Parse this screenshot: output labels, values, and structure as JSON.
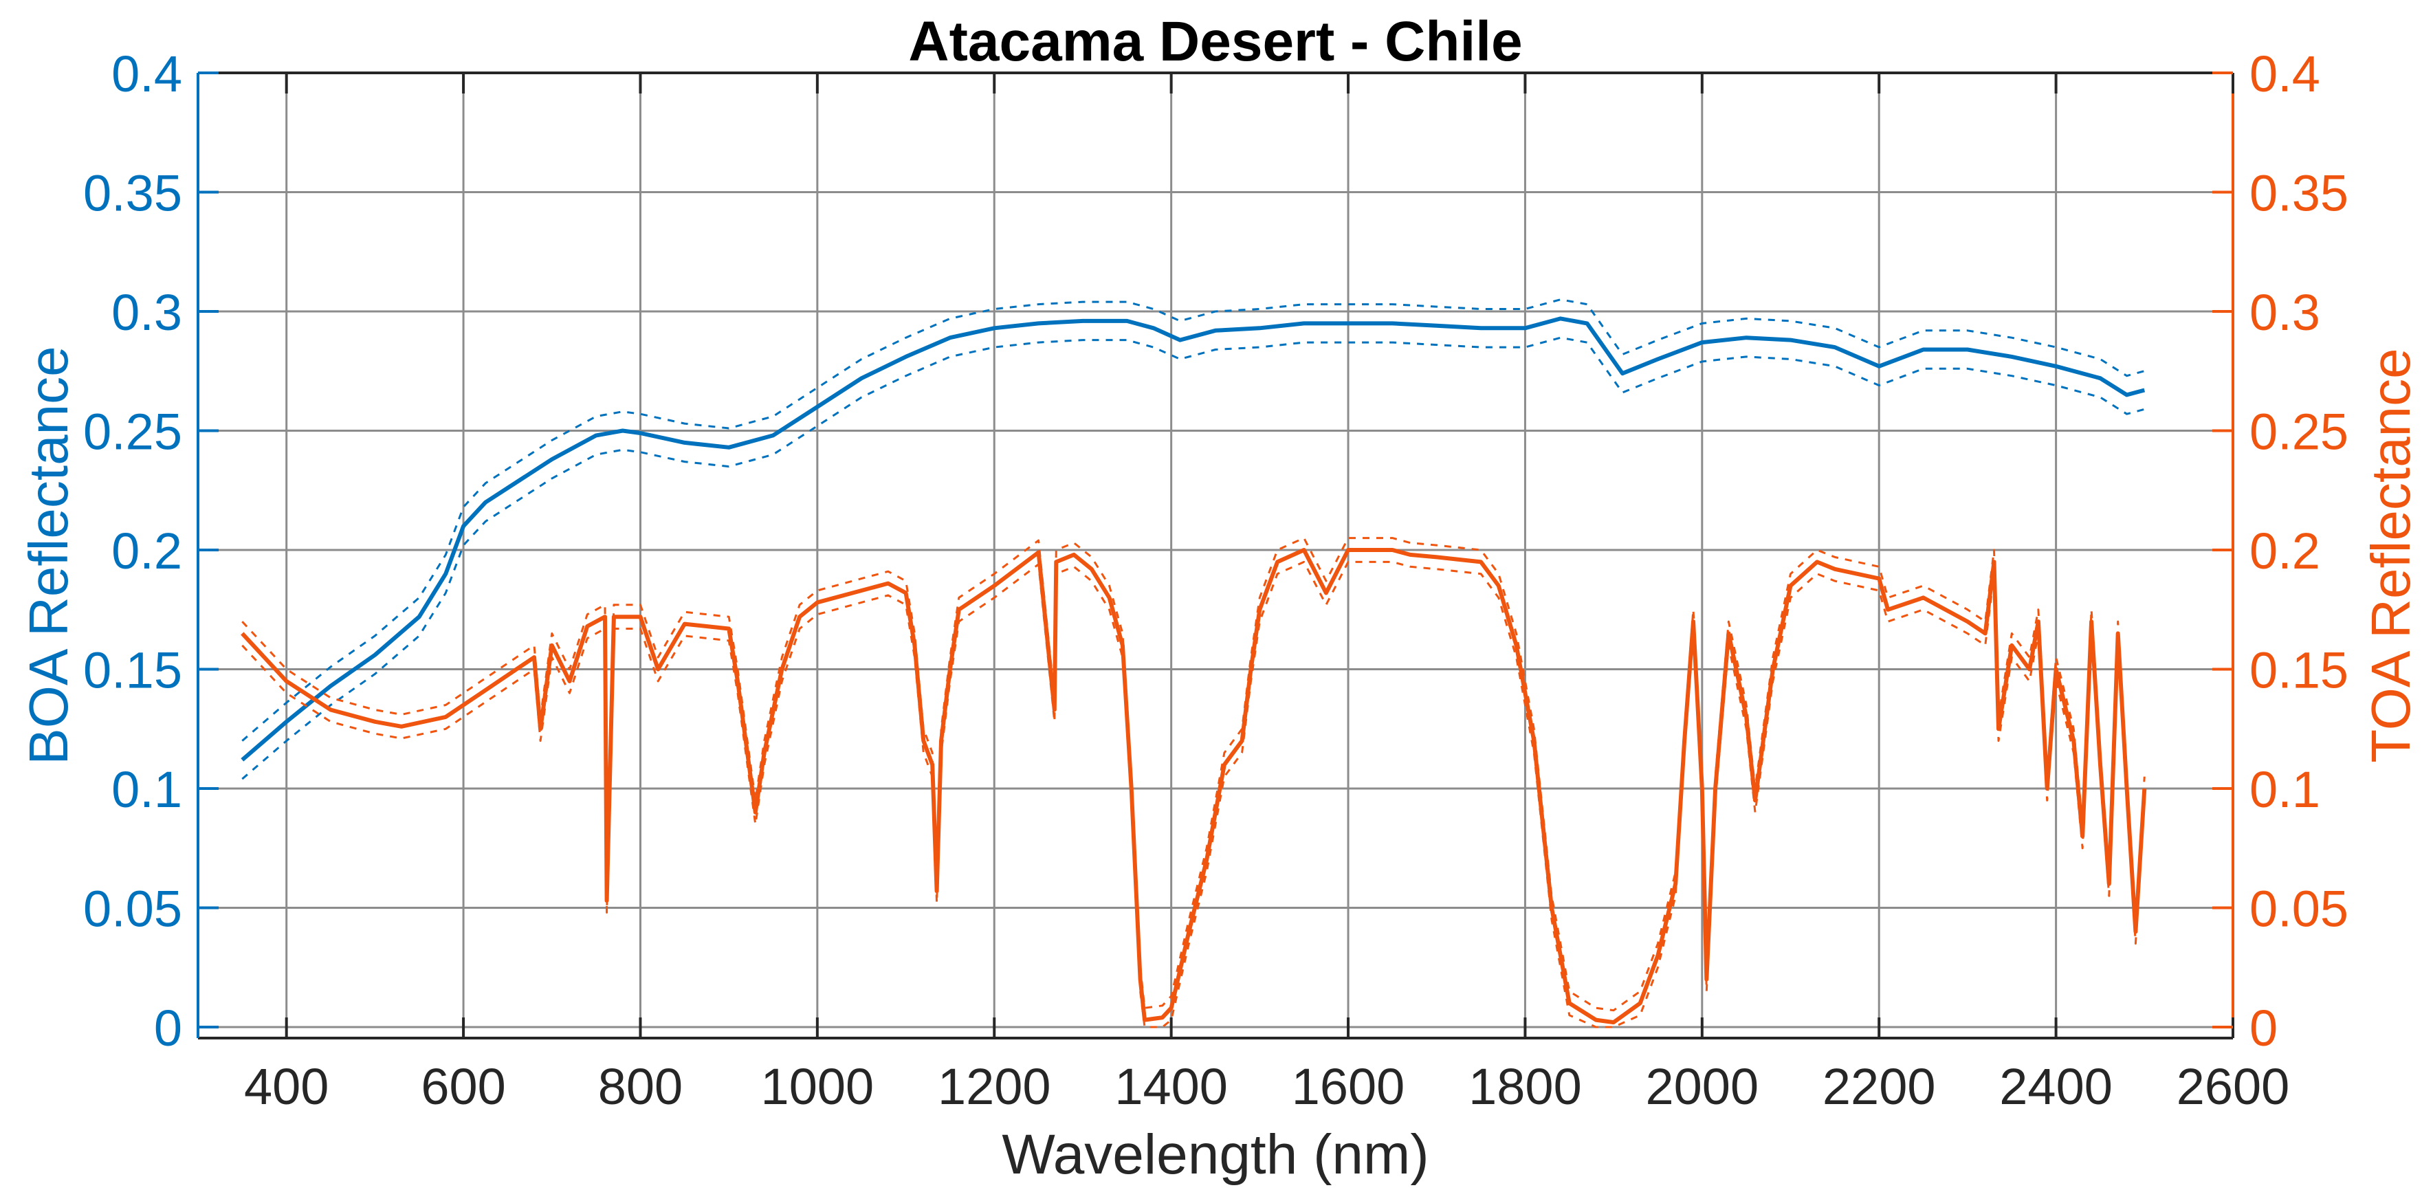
{
  "colors": {
    "boa": "#0072BD",
    "toa": "#F0550F",
    "grid": "#8c8c8c",
    "axis": "#262626"
  },
  "chart_data": {
    "type": "line",
    "title": "Atacama Desert  - Chile",
    "xlabel": "Wavelength (nm)",
    "ylabel_left": "BOA Reflectance",
    "ylabel_right": "TOA Reflectance",
    "xlim": [
      300,
      2600
    ],
    "ylim_left": [
      -0.005,
      0.4
    ],
    "ylim_right": [
      -0.005,
      0.4
    ],
    "grid": true,
    "legend": null,
    "x_ticks": [
      400,
      600,
      800,
      1000,
      1200,
      1400,
      1600,
      1800,
      2000,
      2200,
      2400,
      2600
    ],
    "x_tick_labels": [
      "400",
      "600",
      "800",
      "1000",
      "1200",
      "1400",
      "1600",
      "1800",
      "2000",
      "2200",
      "2400",
      "2600"
    ],
    "y_ticks": [
      0,
      0.05,
      0.1,
      0.15,
      0.2,
      0.25,
      0.3,
      0.35,
      0.4
    ],
    "y_tick_labels": [
      "0",
      "0.05",
      "0.1",
      "0.15",
      "0.2",
      "0.25",
      "0.3",
      "0.35",
      "0.4"
    ],
    "series": [
      {
        "name": "BOA Reflectance (mean)",
        "axis": "left",
        "color": "#0072BD",
        "style": "solid",
        "x": [
          350,
          400,
          450,
          500,
          550,
          580,
          600,
          625,
          650,
          700,
          750,
          780,
          800,
          850,
          900,
          950,
          1000,
          1050,
          1100,
          1150,
          1200,
          1250,
          1300,
          1350,
          1380,
          1410,
          1450,
          1500,
          1550,
          1600,
          1650,
          1700,
          1750,
          1800,
          1840,
          1870,
          1910,
          1950,
          2000,
          2050,
          2100,
          2150,
          2200,
          2250,
          2300,
          2350,
          2400,
          2450,
          2480,
          2500
        ],
        "values": [
          0.112,
          0.128,
          0.143,
          0.156,
          0.172,
          0.19,
          0.21,
          0.22,
          0.226,
          0.238,
          0.248,
          0.25,
          0.249,
          0.245,
          0.243,
          0.248,
          0.26,
          0.272,
          0.281,
          0.289,
          0.293,
          0.295,
          0.296,
          0.296,
          0.293,
          0.288,
          0.292,
          0.293,
          0.295,
          0.295,
          0.295,
          0.294,
          0.293,
          0.293,
          0.297,
          0.295,
          0.274,
          0.28,
          0.287,
          0.289,
          0.288,
          0.285,
          0.277,
          0.284,
          0.284,
          0.281,
          0.277,
          0.272,
          0.265,
          0.267
        ]
      },
      {
        "name": "BOA Reflectance (upper bound)",
        "axis": "left",
        "color": "#0072BD",
        "style": "dashed",
        "offset": 0.008
      },
      {
        "name": "BOA Reflectance (lower bound)",
        "axis": "left",
        "color": "#0072BD",
        "style": "dashed",
        "offset": -0.008
      },
      {
        "name": "TOA Reflectance (mean)",
        "axis": "right",
        "color": "#F0550F",
        "style": "solid",
        "x": [
          350,
          400,
          450,
          500,
          530,
          580,
          620,
          680,
          687,
          700,
          720,
          740,
          760,
          762,
          770,
          800,
          820,
          850,
          900,
          910,
          930,
          940,
          960,
          980,
          1000,
          1050,
          1080,
          1100,
          1110,
          1120,
          1130,
          1135,
          1140,
          1150,
          1160,
          1200,
          1250,
          1268,
          1270,
          1290,
          1310,
          1330,
          1345,
          1355,
          1365,
          1370,
          1390,
          1400,
          1420,
          1440,
          1460,
          1480,
          1490,
          1500,
          1520,
          1550,
          1575,
          1600,
          1650,
          1670,
          1700,
          1750,
          1770,
          1790,
          1810,
          1830,
          1850,
          1880,
          1900,
          1930,
          1950,
          1970,
          1980,
          1990,
          2000,
          2005,
          2015,
          2030,
          2050,
          2060,
          2080,
          2100,
          2130,
          2150,
          2200,
          2210,
          2250,
          2300,
          2320,
          2330,
          2335,
          2350,
          2370,
          2380,
          2390,
          2400,
          2420,
          2430,
          2440,
          2450,
          2460,
          2470,
          2480,
          2490,
          2500
        ],
        "values": [
          0.165,
          0.145,
          0.133,
          0.128,
          0.126,
          0.13,
          0.14,
          0.155,
          0.125,
          0.16,
          0.145,
          0.168,
          0.172,
          0.053,
          0.172,
          0.172,
          0.15,
          0.169,
          0.167,
          0.145,
          0.09,
          0.115,
          0.15,
          0.172,
          0.178,
          0.183,
          0.186,
          0.182,
          0.16,
          0.12,
          0.11,
          0.057,
          0.12,
          0.15,
          0.175,
          0.185,
          0.199,
          0.133,
          0.195,
          0.198,
          0.192,
          0.18,
          0.16,
          0.1,
          0.02,
          0.003,
          0.004,
          0.008,
          0.04,
          0.07,
          0.11,
          0.12,
          0.15,
          0.175,
          0.195,
          0.2,
          0.182,
          0.2,
          0.2,
          0.198,
          0.197,
          0.195,
          0.185,
          0.16,
          0.12,
          0.05,
          0.01,
          0.003,
          0.002,
          0.01,
          0.03,
          0.06,
          0.12,
          0.17,
          0.1,
          0.02,
          0.1,
          0.165,
          0.13,
          0.095,
          0.15,
          0.185,
          0.195,
          0.192,
          0.188,
          0.175,
          0.18,
          0.17,
          0.165,
          0.195,
          0.125,
          0.16,
          0.15,
          0.17,
          0.1,
          0.15,
          0.12,
          0.08,
          0.17,
          0.11,
          0.06,
          0.165,
          0.1,
          0.04,
          0.1
        ]
      },
      {
        "name": "TOA Reflectance (upper bound)",
        "axis": "right",
        "color": "#F0550F",
        "style": "dashed",
        "offset": 0.005
      },
      {
        "name": "TOA Reflectance (lower bound)",
        "axis": "right",
        "color": "#F0550F",
        "style": "dashed",
        "offset": -0.005
      }
    ]
  }
}
